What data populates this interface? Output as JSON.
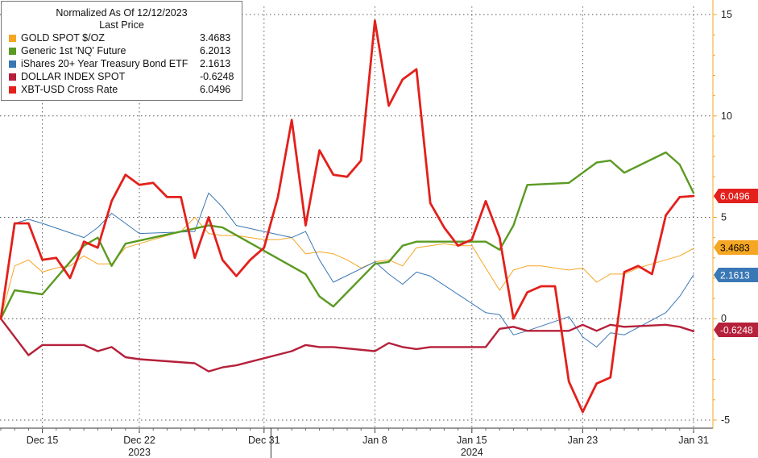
{
  "chart_data": {
    "type": "line",
    "legend": {
      "title_line1": "Normalized As Of 12/12/2023",
      "title_line2": "Last Price",
      "position": "top-left"
    },
    "x_ticks": [
      "Dec 15",
      "Dec 22",
      "Dec 31",
      "Jan 8",
      "Jan 15",
      "Jan 23",
      "Jan 31"
    ],
    "x_tick_dates": [
      "2023-12-15",
      "2023-12-22",
      "2023-12-31",
      "2024-01-08",
      "2024-01-15",
      "2024-01-23",
      "2024-01-31"
    ],
    "year_labels": [
      {
        "label": "2023",
        "date": "2023-12-22"
      },
      {
        "label": "2024",
        "date": "2024-01-15"
      }
    ],
    "y_ticks": [
      "15",
      "10",
      "5",
      "0",
      "-5"
    ],
    "y_tick_values": [
      15,
      10,
      5,
      0,
      -5
    ],
    "ylim": [
      -5.4,
      15.4
    ],
    "xlim": [
      "2023-12-12",
      "2024-01-31"
    ],
    "y_axis_side": "right",
    "grid": true,
    "series": [
      {
        "name": "GOLD SPOT $/OZ",
        "value_label": "3.4683",
        "color": "#f5a623",
        "stroke": 1,
        "x": [
          "2023-12-12",
          "2023-12-13",
          "2023-12-14",
          "2023-12-15",
          "2023-12-16",
          "2023-12-17",
          "2023-12-18",
          "2023-12-19",
          "2023-12-20",
          "2023-12-21",
          "2023-12-22",
          "2023-12-23",
          "2023-12-24",
          "2023-12-25",
          "2023-12-26",
          "2023-12-27",
          "2023-12-28",
          "2023-12-29",
          "2023-12-30",
          "2023-12-31",
          "2024-01-01",
          "2024-01-02",
          "2024-01-03",
          "2024-01-04",
          "2024-01-05",
          "2024-01-06",
          "2024-01-07",
          "2024-01-08",
          "2024-01-09",
          "2024-01-10",
          "2024-01-11",
          "2024-01-12",
          "2024-01-13",
          "2024-01-14",
          "2024-01-15",
          "2024-01-16",
          "2024-01-17",
          "2024-01-18",
          "2024-01-19",
          "2024-01-20",
          "2024-01-21",
          "2024-01-22",
          "2024-01-23",
          "2024-01-24",
          "2024-01-25",
          "2024-01-26",
          "2024-01-27",
          "2024-01-28",
          "2024-01-29",
          "2024-01-30",
          "2024-01-31"
        ],
        "y": [
          0.0,
          2.6,
          2.9,
          2.3,
          2.5,
          2.6,
          3.1,
          2.7,
          2.7,
          3.5,
          3.7,
          3.9,
          4.1,
          4.3,
          5.0,
          4.2,
          4.1,
          4.1,
          4.0,
          3.9,
          3.9,
          4.0,
          3.2,
          3.3,
          3.2,
          2.9,
          2.5,
          2.8,
          2.9,
          2.6,
          3.5,
          3.6,
          3.7,
          3.6,
          3.6,
          2.5,
          1.4,
          2.4,
          2.6,
          2.6,
          2.5,
          2.4,
          2.5,
          1.8,
          2.2,
          2.2,
          2.5,
          2.7,
          2.9,
          3.1,
          3.47
        ]
      },
      {
        "name": "Generic 1st 'NQ' Future",
        "value_label": "6.2013",
        "color": "#5a9a22",
        "stroke": 2.4,
        "x": [
          "2023-12-12",
          "2023-12-13",
          "2023-12-15",
          "2023-12-18",
          "2023-12-19",
          "2023-12-20",
          "2023-12-21",
          "2023-12-27",
          "2023-12-28",
          "2024-01-03",
          "2024-01-04",
          "2024-01-05",
          "2024-01-08",
          "2024-01-09",
          "2024-01-10",
          "2024-01-11",
          "2024-01-12",
          "2024-01-16",
          "2024-01-17",
          "2024-01-18",
          "2024-01-19",
          "2024-01-22",
          "2024-01-23",
          "2024-01-24",
          "2024-01-25",
          "2024-01-26",
          "2024-01-29",
          "2024-01-30",
          "2024-01-31"
        ],
        "y": [
          0.0,
          1.4,
          1.2,
          3.6,
          4.0,
          2.6,
          3.7,
          4.6,
          4.5,
          2.2,
          1.1,
          0.6,
          2.7,
          2.8,
          3.6,
          3.8,
          3.8,
          3.8,
          3.4,
          4.6,
          6.6,
          6.7,
          7.2,
          7.7,
          7.8,
          7.2,
          8.2,
          7.6,
          6.2
        ]
      },
      {
        "name": "iShares 20+ Year Treasury Bond ETF",
        "value_label": "2.1613",
        "color": "#3a77b5",
        "stroke": 1,
        "x": [
          "2023-12-12",
          "2023-12-13",
          "2023-12-14",
          "2023-12-15",
          "2023-12-18",
          "2023-12-19",
          "2023-12-20",
          "2023-12-21",
          "2023-12-22",
          "2023-12-26",
          "2023-12-27",
          "2023-12-28",
          "2023-12-29",
          "2024-01-02",
          "2024-01-03",
          "2024-01-04",
          "2024-01-05",
          "2024-01-08",
          "2024-01-09",
          "2024-01-10",
          "2024-01-11",
          "2024-01-12",
          "2024-01-16",
          "2024-01-17",
          "2024-01-18",
          "2024-01-19",
          "2024-01-22",
          "2024-01-23",
          "2024-01-24",
          "2024-01-25",
          "2024-01-26",
          "2024-01-29",
          "2024-01-30",
          "2024-01-31"
        ],
        "y": [
          0.0,
          4.7,
          4.9,
          4.7,
          4.0,
          4.5,
          5.2,
          4.7,
          4.2,
          4.3,
          6.2,
          5.5,
          4.6,
          4.0,
          4.3,
          2.9,
          1.8,
          2.8,
          2.2,
          1.7,
          2.3,
          2.1,
          0.3,
          0.2,
          -0.8,
          -0.6,
          0.1,
          -0.9,
          -1.4,
          -0.7,
          -0.8,
          0.3,
          1.1,
          2.16
        ]
      },
      {
        "name": "DOLLAR INDEX SPOT",
        "value_label": "-0.6248",
        "color": "#b5203a",
        "stroke": 2.4,
        "x": [
          "2023-12-12",
          "2023-12-14",
          "2023-12-15",
          "2023-12-18",
          "2023-12-19",
          "2023-12-20",
          "2023-12-21",
          "2023-12-22",
          "2023-12-26",
          "2023-12-27",
          "2023-12-28",
          "2023-12-29",
          "2024-01-02",
          "2024-01-03",
          "2024-01-04",
          "2024-01-05",
          "2024-01-08",
          "2024-01-09",
          "2024-01-10",
          "2024-01-11",
          "2024-01-12",
          "2024-01-16",
          "2024-01-17",
          "2024-01-18",
          "2024-01-19",
          "2024-01-22",
          "2024-01-23",
          "2024-01-24",
          "2024-01-25",
          "2024-01-26",
          "2024-01-29",
          "2024-01-30",
          "2024-01-31"
        ],
        "y": [
          0.0,
          -1.8,
          -1.3,
          -1.3,
          -1.6,
          -1.4,
          -1.9,
          -2.0,
          -2.2,
          -2.6,
          -2.4,
          -2.3,
          -1.6,
          -1.3,
          -1.4,
          -1.4,
          -1.6,
          -1.2,
          -1.4,
          -1.5,
          -1.4,
          -1.4,
          -0.5,
          -0.4,
          -0.6,
          -0.6,
          -0.3,
          -0.6,
          -0.3,
          -0.4,
          -0.3,
          -0.4,
          -0.62
        ]
      },
      {
        "name": "XBT-USD Cross Rate",
        "value_label": "6.0496",
        "color": "#e3201b",
        "stroke": 2.8,
        "x": [
          "2023-12-12",
          "2023-12-13",
          "2023-12-14",
          "2023-12-15",
          "2023-12-16",
          "2023-12-17",
          "2023-12-18",
          "2023-12-19",
          "2023-12-20",
          "2023-12-21",
          "2023-12-22",
          "2023-12-23",
          "2023-12-24",
          "2023-12-25",
          "2023-12-26",
          "2023-12-27",
          "2023-12-28",
          "2023-12-29",
          "2023-12-30",
          "2023-12-31",
          "2024-01-01",
          "2024-01-02",
          "2024-01-03",
          "2024-01-04",
          "2024-01-05",
          "2024-01-06",
          "2024-01-07",
          "2024-01-08",
          "2024-01-09",
          "2024-01-10",
          "2024-01-11",
          "2024-01-12",
          "2024-01-13",
          "2024-01-14",
          "2024-01-15",
          "2024-01-16",
          "2024-01-17",
          "2024-01-18",
          "2024-01-19",
          "2024-01-20",
          "2024-01-21",
          "2024-01-22",
          "2024-01-23",
          "2024-01-24",
          "2024-01-25",
          "2024-01-26",
          "2024-01-27",
          "2024-01-28",
          "2024-01-29",
          "2024-01-30",
          "2024-01-31"
        ],
        "y": [
          0.0,
          4.7,
          4.7,
          2.9,
          3.0,
          2.0,
          3.8,
          3.5,
          5.8,
          7.1,
          6.6,
          6.7,
          6.0,
          6.0,
          3.0,
          5.0,
          2.9,
          2.1,
          2.9,
          3.5,
          6.0,
          9.8,
          4.6,
          8.3,
          7.1,
          7.0,
          7.8,
          14.7,
          10.5,
          11.8,
          12.3,
          5.7,
          4.5,
          3.6,
          3.9,
          5.8,
          4.0,
          0.0,
          1.3,
          1.6,
          1.6,
          -3.1,
          -4.6,
          -3.2,
          -2.9,
          2.3,
          2.6,
          2.2,
          5.1,
          6.0,
          6.05
        ]
      }
    ]
  }
}
